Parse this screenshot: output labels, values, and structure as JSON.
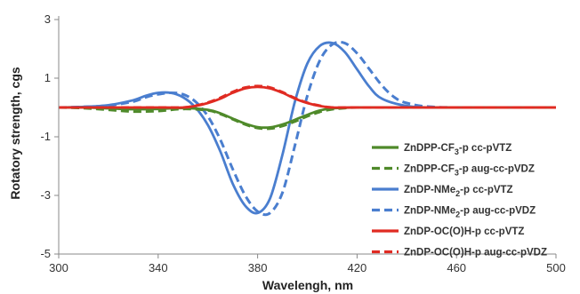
{
  "chart_data": {
    "type": "line",
    "title": "",
    "xlabel": "Wavelengh, nm",
    "ylabel": "Rotatory strength, cgs",
    "xlim": [
      300,
      500
    ],
    "ylim": [
      -5,
      3
    ],
    "xticks": [
      300,
      340,
      380,
      420,
      460,
      500
    ],
    "yticks": [
      3,
      1,
      -1,
      -3,
      -5
    ],
    "grid": false,
    "legend_position": "right",
    "series": [
      {
        "name": "ZnDPP-CF3-p cc-pVTZ",
        "name_parts": {
          "pre": "ZnDPP-CF",
          "sub": "3",
          "post": "-p cc-pVTZ"
        },
        "color": "#4f8a2a",
        "dash": "solid",
        "x": [
          300,
          310,
          320,
          330,
          340,
          350,
          360,
          365,
          370,
          375,
          380,
          385,
          390,
          395,
          400,
          405,
          410,
          420,
          440,
          470,
          500
        ],
        "y": [
          0,
          0,
          -0.03,
          -0.06,
          -0.05,
          -0.02,
          -0.08,
          -0.2,
          -0.38,
          -0.55,
          -0.67,
          -0.68,
          -0.58,
          -0.42,
          -0.25,
          -0.1,
          -0.03,
          0,
          0,
          0,
          0
        ]
      },
      {
        "name": "ZnDPP-CF3-p aug-cc-pVDZ",
        "name_parts": {
          "pre": "ZnDPP-CF",
          "sub": "3",
          "post": "-p aug-cc-pVDZ"
        },
        "color": "#4f8a2a",
        "dash": "dashed",
        "x": [
          300,
          310,
          320,
          330,
          340,
          350,
          360,
          365,
          370,
          375,
          380,
          385,
          390,
          395,
          400,
          405,
          410,
          415,
          420,
          440,
          470,
          500
        ],
        "y": [
          0,
          -0.02,
          -0.08,
          -0.14,
          -0.12,
          -0.05,
          -0.1,
          -0.22,
          -0.4,
          -0.58,
          -0.7,
          -0.72,
          -0.63,
          -0.48,
          -0.3,
          -0.15,
          -0.06,
          -0.02,
          0,
          0,
          0,
          0
        ]
      },
      {
        "name": "ZnDP-NMe2-p cc-pVTZ",
        "name_parts": {
          "pre": "ZnDP-NMe",
          "sub": "2",
          "post": "-p cc-pVTZ"
        },
        "color": "#4a7ecf",
        "dash": "solid",
        "x": [
          300,
          310,
          320,
          330,
          335,
          340,
          345,
          350,
          355,
          360,
          365,
          370,
          375,
          380,
          385,
          390,
          395,
          400,
          405,
          410,
          415,
          420,
          425,
          430,
          440,
          450,
          470,
          500
        ],
        "y": [
          0,
          0.02,
          0.08,
          0.25,
          0.4,
          0.5,
          0.5,
          0.35,
          0,
          -0.6,
          -1.5,
          -2.6,
          -3.35,
          -3.6,
          -3.1,
          -1.6,
          0.2,
          1.5,
          2.1,
          2.2,
          1.9,
          1.3,
          0.7,
          0.3,
          0.05,
          0,
          0,
          0
        ]
      },
      {
        "name": "ZnDP-NMe2-p aug-cc-pVDZ",
        "name_parts": {
          "pre": "ZnDP-NMe",
          "sub": "2",
          "post": "-p aug-cc-pVDZ"
        },
        "color": "#4a7ecf",
        "dash": "dashed",
        "x": [
          300,
          310,
          320,
          330,
          335,
          340,
          345,
          350,
          355,
          360,
          365,
          370,
          375,
          380,
          385,
          390,
          395,
          400,
          405,
          410,
          415,
          420,
          425,
          430,
          435,
          440,
          450,
          470,
          500
        ],
        "y": [
          0,
          0.02,
          0.07,
          0.2,
          0.35,
          0.45,
          0.5,
          0.45,
          0.2,
          -0.3,
          -1.1,
          -2.1,
          -3.0,
          -3.55,
          -3.6,
          -2.9,
          -1.3,
          0.4,
          1.6,
          2.15,
          2.2,
          1.85,
          1.3,
          0.75,
          0.35,
          0.15,
          0.02,
          0,
          0
        ]
      },
      {
        "name": "ZnDP-OC(O)H-p cc-pVTZ",
        "name_parts": {
          "pre": "ZnDP-OC(O)H-",
          "sub": "",
          "post": "p cc-pVTZ"
        },
        "color": "#e02b22",
        "dash": "solid",
        "x": [
          300,
          310,
          320,
          330,
          340,
          350,
          355,
          360,
          365,
          370,
          375,
          380,
          385,
          390,
          395,
          400,
          405,
          410,
          420,
          440,
          470,
          500
        ],
        "y": [
          0,
          0,
          0,
          0,
          0,
          0,
          0.05,
          0.15,
          0.3,
          0.5,
          0.65,
          0.7,
          0.65,
          0.5,
          0.3,
          0.15,
          0.05,
          0,
          0,
          0,
          0,
          0
        ]
      },
      {
        "name": "ZnDP-OC(O)H-p aug-cc-pVDZ",
        "name_parts": {
          "pre": "ZnDP-OC(O)H-",
          "sub": "",
          "post": "p aug-cc-pVDZ"
        },
        "color": "#e02b22",
        "dash": "dashed",
        "x": [
          300,
          310,
          320,
          330,
          340,
          350,
          355,
          360,
          365,
          370,
          375,
          380,
          385,
          390,
          395,
          400,
          405,
          410,
          420,
          440,
          470,
          500
        ],
        "y": [
          0,
          0,
          0,
          0,
          0,
          0,
          0.06,
          0.17,
          0.33,
          0.53,
          0.68,
          0.73,
          0.68,
          0.52,
          0.32,
          0.16,
          0.06,
          0,
          0,
          0,
          0,
          0
        ]
      }
    ]
  }
}
